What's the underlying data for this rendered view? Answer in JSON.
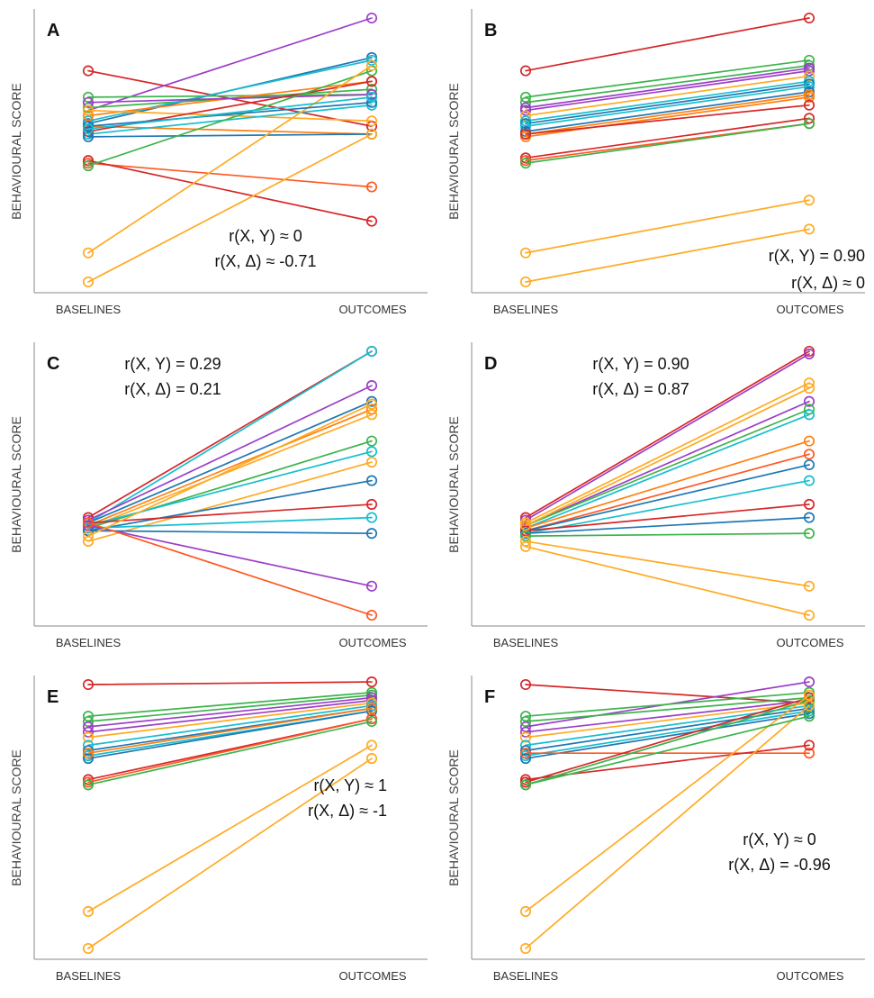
{
  "chart_data": [
    {
      "type": "line",
      "panel_label": "A",
      "x": [
        "BASELINES",
        "OUTCOMES"
      ],
      "ylabel": "BEHAVIOURAL SCORE",
      "annotations": [
        "r(X, Y) ≈ 0",
        "r(X, Δ) ≈ -0.71"
      ],
      "ylim": [
        0,
        100
      ],
      "series": [
        {
          "color": "#d62728",
          "values": [
            80,
            59
          ]
        },
        {
          "color": "#ff7f0e",
          "values": [
            59,
            56
          ]
        },
        {
          "color": "#9b3fc7",
          "values": [
            65,
            100
          ]
        },
        {
          "color": "#1f77b4",
          "values": [
            60,
            85
          ]
        },
        {
          "color": "#3cb44b",
          "values": [
            66,
            73
          ]
        },
        {
          "color": "#3cb44b",
          "values": [
            70,
            71
          ]
        },
        {
          "color": "#17becf",
          "values": [
            61,
            84
          ]
        },
        {
          "color": "#ff7f0e",
          "values": [
            63,
            76
          ]
        },
        {
          "color": "#9b3fc7",
          "values": [
            68,
            71
          ]
        },
        {
          "color": "#ffaa22",
          "values": [
            65,
            61
          ]
        },
        {
          "color": "#17becf",
          "values": [
            56,
            67
          ]
        },
        {
          "color": "#d62728",
          "values": [
            57,
            76
          ]
        },
        {
          "color": "#1f77b4",
          "values": [
            55,
            56
          ]
        },
        {
          "color": "#ff5722",
          "values": [
            45,
            36
          ]
        },
        {
          "color": "#d62728",
          "values": [
            46,
            23
          ]
        },
        {
          "color": "#3cb44b",
          "values": [
            44,
            80
          ]
        },
        {
          "color": "#ffaa22",
          "values": [
            11,
            82
          ]
        },
        {
          "color": "#ffaa22",
          "values": [
            0,
            56
          ]
        },
        {
          "color": "#1f77b4",
          "values": [
            59,
            68
          ]
        },
        {
          "color": "#17becf",
          "values": [
            58,
            70
          ]
        }
      ]
    },
    {
      "type": "line",
      "panel_label": "B",
      "x": [
        "BASELINES",
        "OUTCOMES"
      ],
      "ylabel": "BEHAVIOURAL SCORE",
      "annotations": [
        "r(X, Y) = 0.90",
        "r(X, Δ) ≈ 0"
      ],
      "ylim": [
        0,
        100
      ],
      "series": [
        {
          "color": "#d62728",
          "values": [
            80,
            100
          ]
        },
        {
          "color": "#3cb44b",
          "values": [
            70,
            84
          ]
        },
        {
          "color": "#3cb44b",
          "values": [
            68,
            82
          ]
        },
        {
          "color": "#9b3fc7",
          "values": [
            66,
            81
          ]
        },
        {
          "color": "#9b3fc7",
          "values": [
            65,
            80
          ]
        },
        {
          "color": "#ffaa22",
          "values": [
            63,
            78
          ]
        },
        {
          "color": "#17becf",
          "values": [
            61,
            76
          ]
        },
        {
          "color": "#1f77b4",
          "values": [
            60,
            75
          ]
        },
        {
          "color": "#17becf",
          "values": [
            59,
            74
          ]
        },
        {
          "color": "#1f77b4",
          "values": [
            57,
            72
          ]
        },
        {
          "color": "#ff7f0e",
          "values": [
            56,
            71
          ]
        },
        {
          "color": "#ff7f0e",
          "values": [
            55,
            70
          ]
        },
        {
          "color": "#d62728",
          "values": [
            47,
            62
          ]
        },
        {
          "color": "#ff5722",
          "values": [
            46,
            60
          ]
        },
        {
          "color": "#3cb44b",
          "values": [
            45,
            60
          ]
        },
        {
          "color": "#ffaa22",
          "values": [
            11,
            31
          ]
        },
        {
          "color": "#ffaa22",
          "values": [
            0,
            20
          ]
        },
        {
          "color": "#d62728",
          "values": [
            56,
            67
          ]
        }
      ]
    },
    {
      "type": "line",
      "panel_label": "C",
      "x": [
        "BASELINES",
        "OUTCOMES"
      ],
      "ylabel": "BEHAVIOURAL SCORE",
      "annotations": [
        "r(X, Y) = 0.29",
        "r(X, Δ) = 0.21"
      ],
      "ylim": [
        0,
        100
      ],
      "series": [
        {
          "color": "#d62728",
          "values": [
            37,
            100
          ]
        },
        {
          "color": "#17becf",
          "values": [
            35,
            100
          ]
        },
        {
          "color": "#9b3fc7",
          "values": [
            36,
            87
          ]
        },
        {
          "color": "#1f77b4",
          "values": [
            35,
            81
          ]
        },
        {
          "color": "#ff7f0e",
          "values": [
            34,
            78
          ]
        },
        {
          "color": "#ffaa22",
          "values": [
            33,
            76
          ]
        },
        {
          "color": "#3cb44b",
          "values": [
            33,
            66
          ]
        },
        {
          "color": "#17becf",
          "values": [
            34,
            62
          ]
        },
        {
          "color": "#ffaa22",
          "values": [
            28,
            58
          ]
        },
        {
          "color": "#1f77b4",
          "values": [
            32,
            51
          ]
        },
        {
          "color": "#d62728",
          "values": [
            35,
            42
          ]
        },
        {
          "color": "#17becf",
          "values": [
            33,
            37
          ]
        },
        {
          "color": "#1f77b4",
          "values": [
            32,
            31
          ]
        },
        {
          "color": "#9b3fc7",
          "values": [
            34,
            11
          ]
        },
        {
          "color": "#ff5722",
          "values": [
            35,
            0
          ]
        },
        {
          "color": "#ffaa22",
          "values": [
            30,
            80
          ]
        }
      ]
    },
    {
      "type": "line",
      "panel_label": "D",
      "x": [
        "BASELINES",
        "OUTCOMES"
      ],
      "ylabel": "BEHAVIOURAL SCORE",
      "annotations": [
        "r(X, Y) = 0.90",
        "r(X, Δ) = 0.87"
      ],
      "ylim": [
        0,
        100
      ],
      "series": [
        {
          "color": "#d62728",
          "values": [
            37,
            100
          ]
        },
        {
          "color": "#9b3fc7",
          "values": [
            36,
            99
          ]
        },
        {
          "color": "#ffaa22",
          "values": [
            35,
            88
          ]
        },
        {
          "color": "#9b3fc7",
          "values": [
            34,
            81
          ]
        },
        {
          "color": "#3cb44b",
          "values": [
            34,
            78
          ]
        },
        {
          "color": "#17becf",
          "values": [
            33,
            76
          ]
        },
        {
          "color": "#ff7f0e",
          "values": [
            33,
            66
          ]
        },
        {
          "color": "#ff5722",
          "values": [
            32,
            61
          ]
        },
        {
          "color": "#1f77b4",
          "values": [
            32,
            57
          ]
        },
        {
          "color": "#17becf",
          "values": [
            31,
            51
          ]
        },
        {
          "color": "#d62728",
          "values": [
            32,
            42
          ]
        },
        {
          "color": "#1f77b4",
          "values": [
            31,
            37
          ]
        },
        {
          "color": "#3cb44b",
          "values": [
            30,
            31
          ]
        },
        {
          "color": "#ffaa22",
          "values": [
            28,
            11
          ]
        },
        {
          "color": "#ffaa22",
          "values": [
            26,
            0
          ]
        },
        {
          "color": "#ffaa22",
          "values": [
            34,
            86
          ]
        }
      ]
    },
    {
      "type": "line",
      "panel_label": "E",
      "x": [
        "BASELINES",
        "OUTCOMES"
      ],
      "ylabel": "BEHAVIOURAL SCORE",
      "annotations": [
        "r(X, Y) ≈ 1",
        "r(X, Δ) ≈ -1"
      ],
      "ylim": [
        0,
        100
      ],
      "series": [
        {
          "color": "#d62728",
          "values": [
            100,
            101
          ]
        },
        {
          "color": "#3cb44b",
          "values": [
            88,
            97
          ]
        },
        {
          "color": "#3cb44b",
          "values": [
            86,
            96
          ]
        },
        {
          "color": "#9b3fc7",
          "values": [
            84,
            95
          ]
        },
        {
          "color": "#9b3fc7",
          "values": [
            82,
            94
          ]
        },
        {
          "color": "#ffaa22",
          "values": [
            80,
            93
          ]
        },
        {
          "color": "#17becf",
          "values": [
            77,
            92
          ]
        },
        {
          "color": "#1f77b4",
          "values": [
            75,
            91
          ]
        },
        {
          "color": "#17becf",
          "values": [
            73,
            90
          ]
        },
        {
          "color": "#1f77b4",
          "values": [
            72,
            90
          ]
        },
        {
          "color": "#ff7f0e",
          "values": [
            74,
            91
          ]
        },
        {
          "color": "#d62728",
          "values": [
            64,
            87
          ]
        },
        {
          "color": "#ff5722",
          "values": [
            63,
            87
          ]
        },
        {
          "color": "#3cb44b",
          "values": [
            62,
            86
          ]
        },
        {
          "color": "#ffaa22",
          "values": [
            14,
            77
          ]
        },
        {
          "color": "#ffaa22",
          "values": [
            0,
            72
          ]
        }
      ]
    },
    {
      "type": "line",
      "panel_label": "F",
      "x": [
        "BASELINES",
        "OUTCOMES"
      ],
      "ylabel": "BEHAVIOURAL SCORE",
      "annotations": [
        "r(X, Y) ≈ 0",
        "r(X, Δ) = -0.96"
      ],
      "ylim": [
        0,
        100
      ],
      "series": [
        {
          "color": "#d62728",
          "values": [
            100,
            93
          ]
        },
        {
          "color": "#9b3fc7",
          "values": [
            84,
            101
          ]
        },
        {
          "color": "#3cb44b",
          "values": [
            88,
            97
          ]
        },
        {
          "color": "#3cb44b",
          "values": [
            86,
            95
          ]
        },
        {
          "color": "#9b3fc7",
          "values": [
            82,
            94
          ]
        },
        {
          "color": "#ffaa22",
          "values": [
            80,
            93
          ]
        },
        {
          "color": "#17becf",
          "values": [
            77,
            92
          ]
        },
        {
          "color": "#1f77b4",
          "values": [
            75,
            91
          ]
        },
        {
          "color": "#17becf",
          "values": [
            73,
            90
          ]
        },
        {
          "color": "#1f77b4",
          "values": [
            72,
            89
          ]
        },
        {
          "color": "#ff5722",
          "values": [
            74,
            74
          ]
        },
        {
          "color": "#d62728",
          "values": [
            64,
            77
          ]
        },
        {
          "color": "#d62728",
          "values": [
            63,
            95
          ]
        },
        {
          "color": "#3cb44b",
          "values": [
            62,
            94
          ]
        },
        {
          "color": "#ffaa22",
          "values": [
            14,
            96
          ]
        },
        {
          "color": "#ffaa22",
          "values": [
            0,
            92
          ]
        },
        {
          "color": "#3cb44b",
          "values": [
            62,
            88
          ]
        }
      ]
    }
  ]
}
